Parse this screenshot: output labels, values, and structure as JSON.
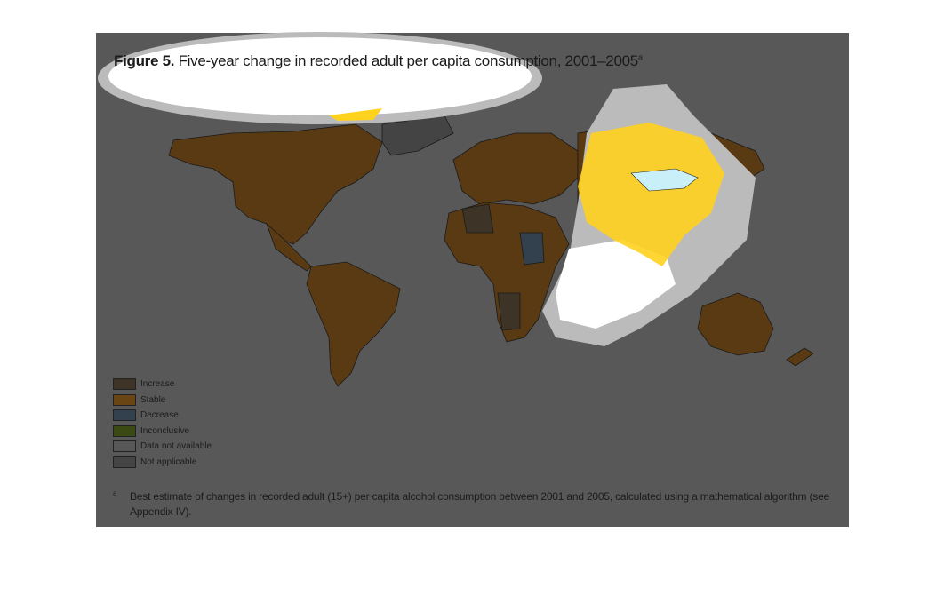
{
  "figure": {
    "label": "Figure 5.",
    "title": "Five-year change in recorded adult per capita consumption, 2001–2005",
    "title_superscript": "a"
  },
  "legend": {
    "items": [
      {
        "label": "Increase",
        "color": "#3d3326"
      },
      {
        "label": "Stable",
        "color": "#6a4514"
      },
      {
        "label": "Decrease",
        "color": "#33414e"
      },
      {
        "label": "Inconclusive",
        "color": "#3a4a12"
      },
      {
        "label": "Data not available",
        "color": "#575757"
      },
      {
        "label": "Not applicable",
        "color": "#454545"
      }
    ]
  },
  "footnote": {
    "marker": "a",
    "text": "Best estimate of changes in recorded adult (15+) per capita alcohol consumption between 2001 and 2005, calculated using a mathematical algorithm (see Appendix IV)."
  }
}
